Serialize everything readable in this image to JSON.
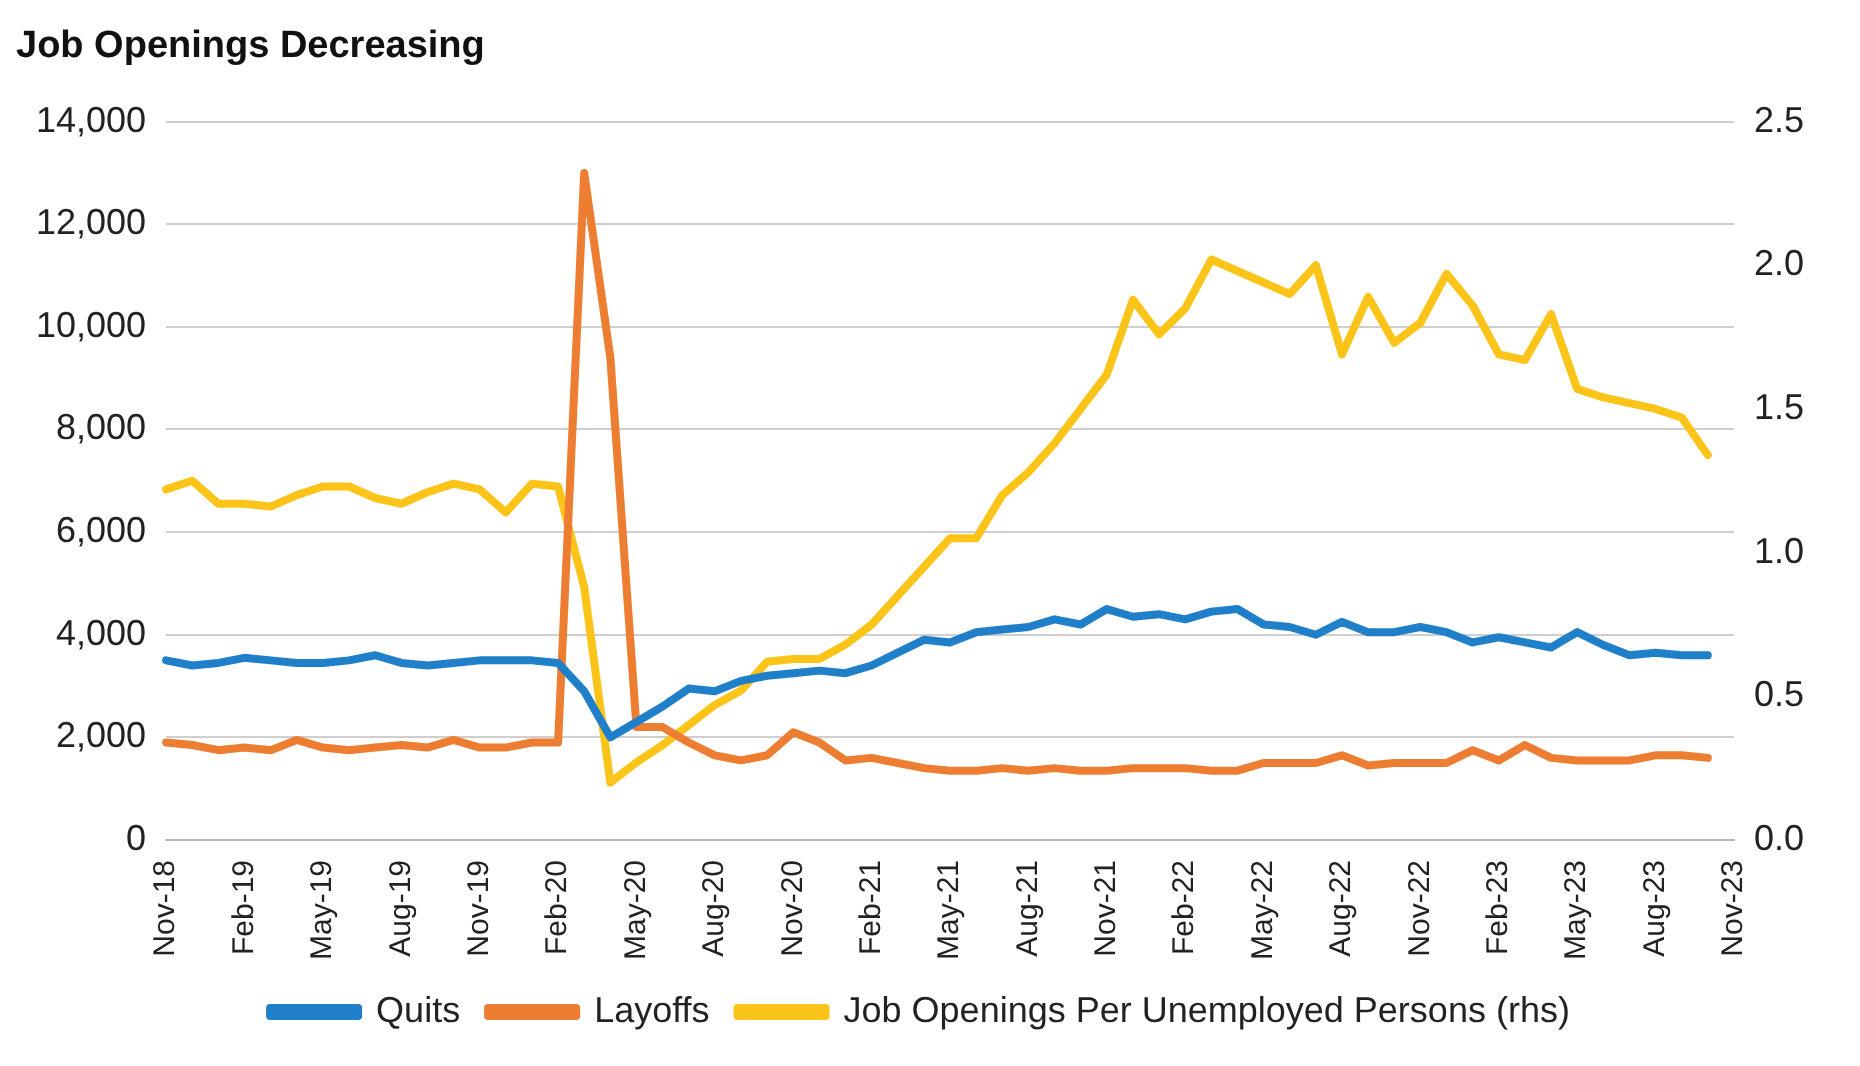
{
  "chart_data": {
    "type": "line",
    "title": "Job Openings Decreasing",
    "categories": [
      "Nov-18",
      null,
      null,
      "Feb-19",
      null,
      null,
      "May-19",
      null,
      null,
      "Aug-19",
      null,
      null,
      "Nov-19",
      null,
      null,
      "Feb-20",
      null,
      null,
      "May-20",
      null,
      null,
      "Aug-20",
      null,
      null,
      "Nov-20",
      null,
      null,
      "Feb-21",
      null,
      null,
      "May-21",
      null,
      null,
      "Aug-21",
      null,
      null,
      "Nov-21",
      null,
      null,
      "Feb-22",
      null,
      null,
      "May-22",
      null,
      null,
      "Aug-22",
      null,
      null,
      "Nov-22",
      null,
      null,
      "Feb-23",
      null,
      null,
      "May-23",
      null,
      null,
      "Aug-23",
      null,
      null,
      "Nov-23"
    ],
    "series": [
      {
        "name": "Quits",
        "color": "#1f7fc8",
        "values": [
          3500,
          3400,
          3450,
          3550,
          3500,
          3450,
          3450,
          3500,
          3600,
          3450,
          3400,
          3450,
          3500,
          3500,
          3500,
          3450,
          2900,
          2000,
          2300,
          2600,
          2950,
          2900,
          3100,
          3200,
          3250,
          3300,
          3250,
          3400,
          3650,
          3900,
          3850,
          4050,
          4100,
          4150,
          4300,
          4200,
          4500,
          4350,
          4400,
          4300,
          4450,
          4500,
          4200,
          4150,
          4000,
          4250,
          4050,
          4050,
          4150,
          4050,
          3850,
          3950,
          3850,
          3750,
          4050,
          3800,
          3600,
          3650,
          3600,
          3600,
          null
        ]
      },
      {
        "name": "Layoffs",
        "color": "#ed7d31",
        "values": [
          1900,
          1850,
          1750,
          1800,
          1750,
          1950,
          1800,
          1750,
          1800,
          1850,
          1800,
          1950,
          1800,
          1800,
          1900,
          1900,
          13000,
          9400,
          2200,
          2200,
          1900,
          1650,
          1550,
          1650,
          2100,
          1900,
          1550,
          1600,
          1500,
          1400,
          1350,
          1350,
          1400,
          1350,
          1400,
          1350,
          1350,
          1400,
          1400,
          1400,
          1350,
          1350,
          1500,
          1500,
          1500,
          1650,
          1450,
          1500,
          1500,
          1500,
          1750,
          1550,
          1850,
          1600,
          1550,
          1550,
          1550,
          1650,
          1650,
          1600,
          null
        ]
      },
      {
        "name": "Job Openings Per Unemployed Persons (rhs)",
        "color": "#fcc419",
        "axis": "y2",
        "values": [
          1.22,
          1.25,
          1.17,
          1.17,
          1.16,
          1.2,
          1.23,
          1.23,
          1.19,
          1.17,
          1.21,
          1.24,
          1.22,
          1.14,
          1.24,
          1.23,
          0.88,
          0.2,
          0.27,
          0.33,
          0.4,
          0.47,
          0.52,
          0.62,
          0.63,
          0.63,
          0.68,
          0.75,
          0.85,
          0.95,
          1.05,
          1.05,
          1.2,
          1.28,
          1.38,
          1.5,
          1.62,
          1.88,
          1.76,
          1.85,
          2.02,
          1.98,
          1.94,
          1.9,
          2.0,
          1.69,
          1.89,
          1.73,
          1.8,
          1.97,
          1.86,
          1.69,
          1.67,
          1.83,
          1.57,
          1.54,
          1.52,
          1.5,
          1.47,
          1.34,
          null
        ]
      }
    ],
    "ylim": [
      0,
      14000
    ],
    "yticks": [
      0,
      {
        "value": 2000,
        "label": "2,000"
      },
      {
        "value": 4000,
        "label": "4,000"
      },
      {
        "value": 6000,
        "label": "6,000"
      },
      {
        "value": 8000,
        "label": "8,000"
      },
      {
        "value": 10000,
        "label": "10,000"
      },
      {
        "value": 12000,
        "label": "12,000"
      },
      {
        "value": 14000,
        "label": "14,000"
      }
    ],
    "y2lim": [
      0,
      2.5
    ],
    "y2ticks": [
      {
        "value": 0,
        "label": "0.0"
      },
      0.5,
      {
        "value": 1,
        "label": "1.0"
      },
      1.5,
      {
        "value": 2,
        "label": "2.0"
      },
      2.5
    ],
    "grid": "y",
    "legend": "bottom",
    "line_style": "solid"
  }
}
